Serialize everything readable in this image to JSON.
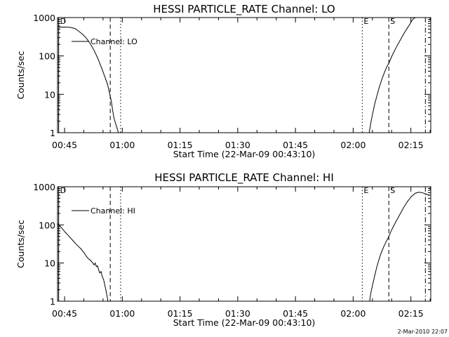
{
  "chart_data": [
    {
      "type": "line",
      "title": "HESSI PARTICLE_RATE Channel: LO",
      "xlabel": "Start Time (22-Mar-09 00:43:10)",
      "ylabel": "Counts/sec",
      "x_unit": "minutes after 00:43:10",
      "xlim": [
        0,
        97
      ],
      "ylim": [
        1,
        1000
      ],
      "y_scale": "log",
      "x_tick_labels": [
        "00:45",
        "01:00",
        "01:15",
        "01:30",
        "01:45",
        "02:00",
        "02:15"
      ],
      "y_tick_labels": [
        "1",
        "10",
        "100",
        "1000"
      ],
      "legend": "Channel: LO",
      "legend_placement": "top-left",
      "series": [
        {
          "name": "Channel: LO",
          "segments": [
            [
              [
                0.3,
                560
              ],
              [
                1.5,
                565
              ],
              [
                3,
                560
              ],
              [
                4.5,
                520
              ],
              [
                5.5,
                440
              ],
              [
                6.5,
                370
              ],
              [
                7.5,
                290
              ],
              [
                8.5,
                210
              ],
              [
                9.5,
                140
              ],
              [
                10.5,
                85
              ],
              [
                11.5,
                47
              ],
              [
                12.5,
                25
              ],
              [
                13,
                18
              ],
              [
                13.5,
                11
              ],
              [
                14,
                6.5
              ],
              [
                14.3,
                4
              ],
              [
                14.6,
                2.6
              ],
              [
                14.9,
                2
              ],
              [
                15.2,
                1.6
              ],
              [
                15.5,
                1.3
              ],
              [
                15.8,
                1
              ]
            ],
            [
              [
                81,
                1
              ],
              [
                81.5,
                2
              ],
              [
                82,
                3.5
              ],
              [
                82.5,
                6
              ],
              [
                83,
                9
              ],
              [
                83.5,
                14
              ],
              [
                84,
                20
              ],
              [
                84.5,
                28
              ],
              [
                85,
                38
              ],
              [
                85.5,
                50
              ],
              [
                86,
                62
              ],
              [
                86.5,
                80
              ],
              [
                87,
                105
              ],
              [
                88,
                165
              ],
              [
                89,
                250
              ],
              [
                90,
                380
              ],
              [
                91,
                550
              ],
              [
                91.5,
                650
              ],
              [
                92,
                800
              ],
              [
                92.5,
                940
              ],
              [
                93,
                1000
              ],
              [
                96.8,
                1000
              ]
            ]
          ]
        }
      ],
      "markers": [
        {
          "label": "D",
          "style": "solid",
          "x": 0.3
        },
        {
          "label": "",
          "style": "dashed",
          "x": 13.7
        },
        {
          "label": "",
          "style": "dotted",
          "x": 16.4
        },
        {
          "label": "E",
          "style": "dotted",
          "x": 79.2
        },
        {
          "label": "S",
          "style": "dashed",
          "x": 86.1
        },
        {
          "label": "",
          "style": "dashdot",
          "x": 95.6
        }
      ]
    },
    {
      "type": "line",
      "title": "HESSI PARTICLE_RATE Channel: HI",
      "xlabel": "Start Time (22-Mar-09 00:43:10)",
      "ylabel": "Counts/sec",
      "x_unit": "minutes after 00:43:10",
      "xlim": [
        0,
        97
      ],
      "ylim": [
        1,
        1000
      ],
      "y_scale": "log",
      "x_tick_labels": [
        "00:45",
        "01:00",
        "01:15",
        "01:30",
        "01:45",
        "02:00",
        "02:15"
      ],
      "y_tick_labels": [
        "1",
        "10",
        "100",
        "1000"
      ],
      "legend": "Channel: HI",
      "legend_placement": "top-left",
      "series": [
        {
          "name": "Channel: HI",
          "segments": [
            [
              [
                0,
                110
              ],
              [
                1,
                85
              ],
              [
                2,
                64
              ],
              [
                3,
                50
              ],
              [
                4,
                39
              ],
              [
                5,
                30
              ],
              [
                6,
                24
              ],
              [
                7,
                18
              ],
              [
                7.5,
                15
              ],
              [
                8,
                13
              ],
              [
                8.5,
                12
              ],
              [
                9,
                10.5
              ],
              [
                9.5,
                9
              ],
              [
                9.8,
                10
              ],
              [
                10.1,
                8
              ],
              [
                10.4,
                8.5
              ],
              [
                10.7,
                6.5
              ],
              [
                11,
                5.5
              ],
              [
                11.3,
                6
              ],
              [
                11.6,
                4.5
              ],
              [
                12,
                3.6
              ],
              [
                12.3,
                2.6
              ],
              [
                12.6,
                1.9
              ],
              [
                12.9,
                1.3
              ],
              [
                13.1,
                1
              ]
            ],
            [
              [
                81.1,
                1
              ],
              [
                81.5,
                1.8
              ],
              [
                82,
                3
              ],
              [
                82.5,
                5
              ],
              [
                83,
                8
              ],
              [
                83.5,
                12
              ],
              [
                84,
                17
              ],
              [
                84.5,
                23
              ],
              [
                85,
                30
              ],
              [
                85.5,
                38
              ],
              [
                86,
                47
              ],
              [
                86.5,
                62
              ],
              [
                87,
                80
              ],
              [
                88,
                125
              ],
              [
                89,
                190
              ],
              [
                90,
                290
              ],
              [
                91,
                420
              ],
              [
                92,
                560
              ],
              [
                93,
                680
              ],
              [
                94,
                720
              ],
              [
                95,
                690
              ],
              [
                96,
                630
              ],
              [
                96.8,
                600
              ]
            ]
          ]
        }
      ],
      "markers": [
        {
          "label": "D",
          "style": "solid",
          "x": 0.3
        },
        {
          "label": "",
          "style": "dashed",
          "x": 13.7
        },
        {
          "label": "",
          "style": "dotted",
          "x": 16.4
        },
        {
          "label": "E",
          "style": "dotted",
          "x": 79.2
        },
        {
          "label": "S",
          "style": "dashed",
          "x": 86.1
        },
        {
          "label": "",
          "style": "dashdot",
          "x": 95.6
        }
      ]
    }
  ],
  "footer": {
    "timestamp": "2-Mar-2010 22:07"
  }
}
